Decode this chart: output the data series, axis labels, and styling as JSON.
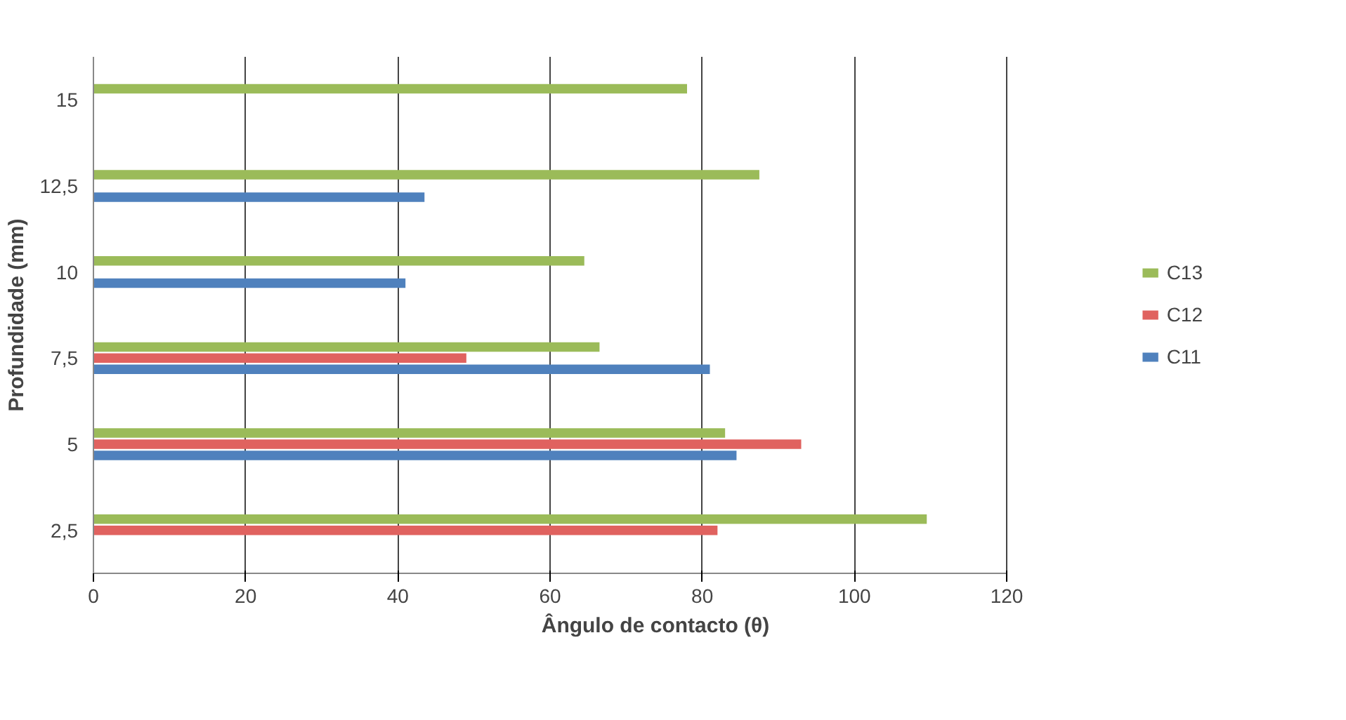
{
  "chart_data": {
    "type": "bar",
    "orientation": "horizontal",
    "xlabel": "Ângulo de contacto (θ)",
    "ylabel": "Profundidade (mm)",
    "categories": [
      "15",
      "12,5",
      "10",
      "7,5",
      "5",
      "2,5"
    ],
    "series": [
      {
        "name": "C11",
        "color": "#4f81bd",
        "values": [
          null,
          43.5,
          41,
          81,
          84.5,
          null
        ]
      },
      {
        "name": "C12",
        "color": "#e0625f",
        "values": [
          null,
          null,
          null,
          49,
          93,
          82
        ]
      },
      {
        "name": "C13",
        "color": "#9bbb59",
        "values": [
          78,
          87.5,
          64.5,
          66.5,
          83,
          109.5
        ]
      }
    ],
    "xlim": [
      0,
      120
    ],
    "xticks": [
      0,
      20,
      40,
      60,
      80,
      100,
      120
    ],
    "grid": "x",
    "legend": "right"
  }
}
